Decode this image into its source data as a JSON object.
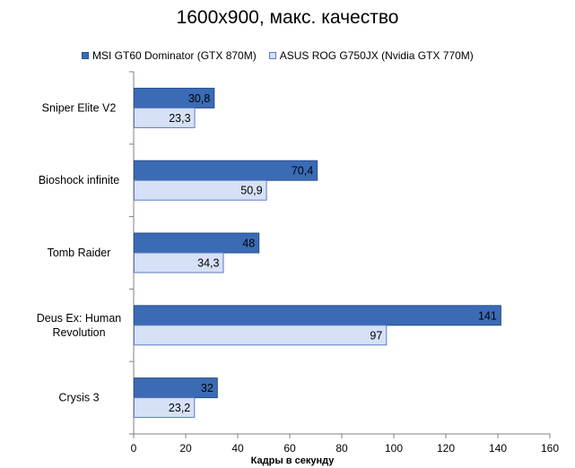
{
  "colors": {
    "series1_fill": "#3b6bb5",
    "series1_stroke": "#2a4f8a",
    "series2_fill": "#d6e1f7",
    "series2_stroke": "#5a7bbf",
    "axis": "#808080"
  },
  "chart_data": {
    "type": "bar",
    "orientation": "horizontal",
    "title": "1600x900, макс. качество",
    "xlabel": "Кадры  в секунду",
    "ylabel": "",
    "xlim": [
      0,
      160
    ],
    "xticks": [
      0,
      20,
      40,
      60,
      80,
      100,
      120,
      140,
      160
    ],
    "grid": false,
    "legend_position": "top",
    "categories": [
      "Sniper Elite V2",
      "Bioshock infinite",
      "Tomb Raider",
      "Deus Ex: Human Revolution",
      "Crysis 3"
    ],
    "series": [
      {
        "name": "MSI GT60 Dominator (GTX 870M)",
        "values": [
          30.8,
          70.4,
          48,
          141,
          32
        ],
        "labels": [
          "30,8",
          "70,4",
          "48",
          "141",
          "32"
        ]
      },
      {
        "name": "ASUS ROG G750JX (Nvidia GTX 770M)",
        "values": [
          23.3,
          50.9,
          34.3,
          97,
          23.2
        ],
        "labels": [
          "23,3",
          "50,9",
          "34,3",
          "97",
          "23,2"
        ]
      }
    ]
  }
}
